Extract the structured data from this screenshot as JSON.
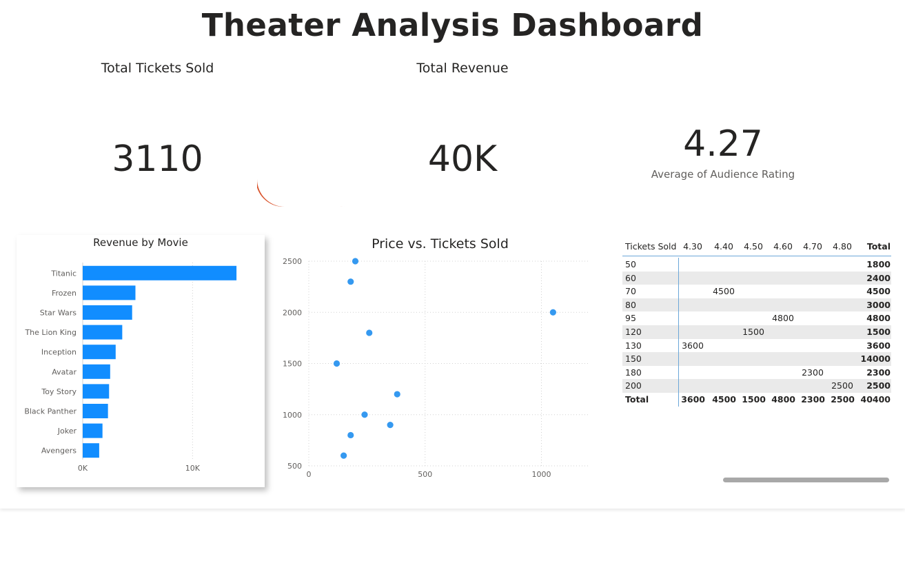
{
  "page_title": "Theater Analysis Dashboard",
  "kpis": {
    "tickets": {
      "title": "Total Tickets Sold",
      "value": "3110"
    },
    "revenue": {
      "title": "Total Revenue",
      "value": "40K"
    },
    "rating": {
      "value": "4.27",
      "label": "Average of Audience Rating"
    }
  },
  "colors": {
    "accent": "#118DFF",
    "scatter": "#3599F0",
    "grid": "#d0d0d0",
    "band": "#eaeaea",
    "divider": "#6aa6d8"
  },
  "chart_data": [
    {
      "type": "bar",
      "title": "Revenue by Movie",
      "orientation": "horizontal",
      "categories": [
        "Titanic",
        "Frozen",
        "Star Wars",
        "The Lion King",
        "Inception",
        "Avatar",
        "Toy Story",
        "Black Panther",
        "Joker",
        "Avengers"
      ],
      "values": [
        14000,
        4800,
        4500,
        3600,
        3000,
        2500,
        2400,
        2300,
        1800,
        1500
      ],
      "xlim": [
        0,
        15500
      ],
      "xticks": [
        0,
        10000
      ],
      "xtick_labels": [
        "0K",
        "10K"
      ],
      "grid": true
    },
    {
      "type": "scatter",
      "title": "Price vs. Tickets Sold",
      "x": [
        200,
        180,
        1050,
        260,
        120,
        380,
        240,
        350,
        180,
        150
      ],
      "y": [
        2500,
        2300,
        2000,
        1800,
        1500,
        1200,
        1000,
        900,
        800,
        600
      ],
      "xlim": [
        0,
        1200
      ],
      "ylim": [
        500,
        2500
      ],
      "xticks": [
        0,
        500,
        1000
      ],
      "yticks": [
        500,
        1000,
        1500,
        2000,
        2500
      ],
      "grid": true
    }
  ],
  "matrix": {
    "headers": [
      "Tickets Sold",
      "4.30",
      "4.40",
      "4.50",
      "4.60",
      "4.70",
      "4.80",
      "Total"
    ],
    "rows": [
      [
        "50",
        "",
        "",
        "",
        "",
        "",
        "",
        "1800"
      ],
      [
        "60",
        "",
        "",
        "",
        "",
        "",
        "",
        "2400"
      ],
      [
        "70",
        "",
        "4500",
        "",
        "",
        "",
        "",
        "4500"
      ],
      [
        "80",
        "",
        "",
        "",
        "",
        "",
        "",
        "3000"
      ],
      [
        "95",
        "",
        "",
        "",
        "4800",
        "",
        "",
        "4800"
      ],
      [
        "120",
        "",
        "",
        "1500",
        "",
        "",
        "",
        "1500"
      ],
      [
        "130",
        "3600",
        "",
        "",
        "",
        "",
        "",
        "3600"
      ],
      [
        "150",
        "",
        "",
        "",
        "",
        "",
        "",
        "14000"
      ],
      [
        "180",
        "",
        "",
        "",
        "",
        "2300",
        "",
        "2300"
      ],
      [
        "200",
        "",
        "",
        "",
        "",
        "",
        "2500",
        "2500"
      ]
    ],
    "total_row": [
      "Total",
      "3600",
      "4500",
      "1500",
      "4800",
      "2300",
      "2500",
      "40400"
    ]
  }
}
